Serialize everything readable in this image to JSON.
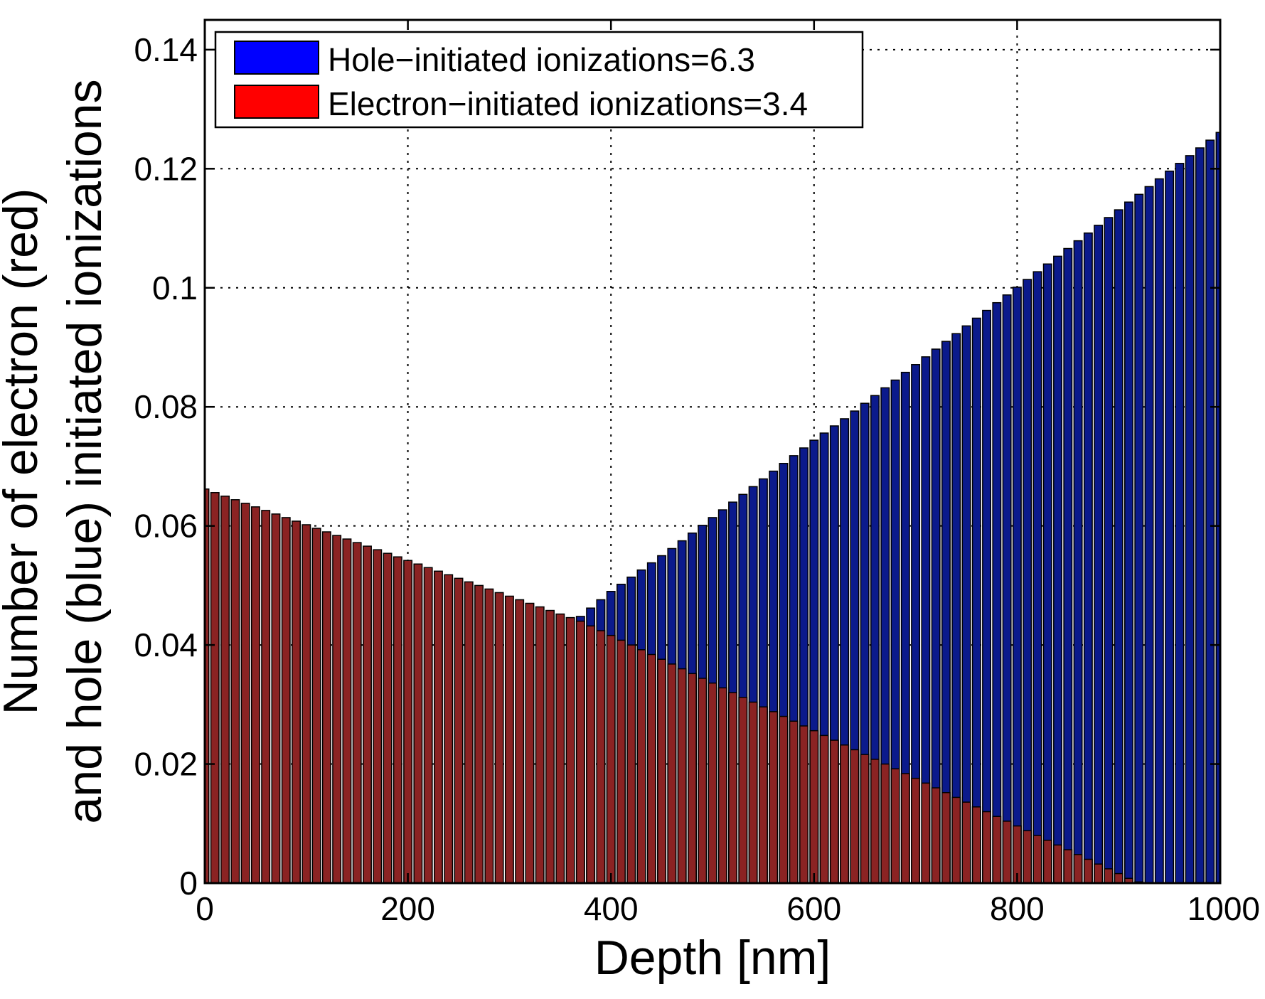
{
  "chart_data": {
    "type": "bar",
    "title": "",
    "xlabel": "Depth [nm]",
    "ylabel_line1": "Number of electron (red)",
    "ylabel_line2": "and hole (blue) initiated ionizations",
    "xlim": [
      0,
      1000
    ],
    "ylim": [
      0,
      0.145
    ],
    "grid": true,
    "legend_position": "top-left",
    "bar_step": 10,
    "x_ticks": [
      {
        "value": 0,
        "label": "0"
      },
      {
        "value": 200,
        "label": "200"
      },
      {
        "value": 400,
        "label": "400"
      },
      {
        "value": 600,
        "label": "600"
      },
      {
        "value": 800,
        "label": "800"
      },
      {
        "value": 1000,
        "label": "1000"
      }
    ],
    "y_ticks": [
      {
        "value": 0,
        "label": "0"
      },
      {
        "value": 0.02,
        "label": "0.02"
      },
      {
        "value": 0.04,
        "label": "0.04"
      },
      {
        "value": 0.06,
        "label": "0.06"
      },
      {
        "value": 0.08,
        "label": "0.08"
      },
      {
        "value": 0.1,
        "label": "0.1"
      },
      {
        "value": 0.12,
        "label": "0.12"
      },
      {
        "value": 0.14,
        "label": "0.14"
      }
    ],
    "series": [
      {
        "name": "Hole−initiated ionizations=6.3",
        "color": "#0b1a8c",
        "legend_color": "#0000ff",
        "points": [
          [
            370,
            0.0448
          ],
          [
            380,
            0.0462
          ],
          [
            390,
            0.0476
          ],
          [
            400,
            0.049
          ],
          [
            410,
            0.0502
          ],
          [
            420,
            0.0514
          ],
          [
            430,
            0.0526
          ],
          [
            440,
            0.0538
          ],
          [
            450,
            0.055
          ],
          [
            460,
            0.0562
          ],
          [
            470,
            0.0575
          ],
          [
            480,
            0.0588
          ],
          [
            490,
            0.0601
          ],
          [
            500,
            0.0614
          ],
          [
            510,
            0.0627
          ],
          [
            520,
            0.064
          ],
          [
            530,
            0.0653
          ],
          [
            540,
            0.0666
          ],
          [
            550,
            0.0679
          ],
          [
            560,
            0.0692
          ],
          [
            570,
            0.0705
          ],
          [
            580,
            0.0718
          ],
          [
            590,
            0.0731
          ],
          [
            600,
            0.0744
          ],
          [
            610,
            0.0756
          ],
          [
            620,
            0.0768
          ],
          [
            630,
            0.078
          ],
          [
            640,
            0.0793
          ],
          [
            650,
            0.0806
          ],
          [
            660,
            0.0819
          ],
          [
            670,
            0.0832
          ],
          [
            680,
            0.0845
          ],
          [
            690,
            0.0858
          ],
          [
            700,
            0.0871
          ],
          [
            710,
            0.0884
          ],
          [
            720,
            0.0897
          ],
          [
            730,
            0.091
          ],
          [
            740,
            0.0923
          ],
          [
            750,
            0.0936
          ],
          [
            760,
            0.0949
          ],
          [
            770,
            0.0962
          ],
          [
            780,
            0.0975
          ],
          [
            790,
            0.0988
          ],
          [
            800,
            0.1001
          ],
          [
            810,
            0.1014
          ],
          [
            820,
            0.1027
          ],
          [
            830,
            0.104
          ],
          [
            840,
            0.1053
          ],
          [
            850,
            0.1066
          ],
          [
            860,
            0.1079
          ],
          [
            870,
            0.1092
          ],
          [
            880,
            0.1105
          ],
          [
            890,
            0.1118
          ],
          [
            900,
            0.1131
          ],
          [
            910,
            0.1144
          ],
          [
            920,
            0.1157
          ],
          [
            930,
            0.117
          ],
          [
            940,
            0.1183
          ],
          [
            950,
            0.1196
          ],
          [
            960,
            0.1209
          ],
          [
            970,
            0.1222
          ],
          [
            980,
            0.1235
          ],
          [
            990,
            0.1248
          ],
          [
            1000,
            0.1261
          ]
        ]
      },
      {
        "name": "Electron−initiated ionizations=3.4",
        "color": "#8b2323",
        "legend_color": "#ff0000",
        "points": [
          [
            0,
            0.0662
          ],
          [
            10,
            0.0656
          ],
          [
            20,
            0.065
          ],
          [
            30,
            0.0644
          ],
          [
            40,
            0.0638
          ],
          [
            50,
            0.0632
          ],
          [
            60,
            0.0626
          ],
          [
            70,
            0.062
          ],
          [
            80,
            0.0614
          ],
          [
            90,
            0.0608
          ],
          [
            100,
            0.0602
          ],
          [
            110,
            0.0596
          ],
          [
            120,
            0.059
          ],
          [
            130,
            0.0584
          ],
          [
            140,
            0.0578
          ],
          [
            150,
            0.0572
          ],
          [
            160,
            0.0566
          ],
          [
            170,
            0.056
          ],
          [
            180,
            0.0554
          ],
          [
            190,
            0.0548
          ],
          [
            200,
            0.0542
          ],
          [
            210,
            0.0536
          ],
          [
            220,
            0.053
          ],
          [
            230,
            0.0524
          ],
          [
            240,
            0.0518
          ],
          [
            250,
            0.0512
          ],
          [
            260,
            0.0506
          ],
          [
            270,
            0.05
          ],
          [
            280,
            0.0494
          ],
          [
            290,
            0.0488
          ],
          [
            300,
            0.0482
          ],
          [
            310,
            0.0476
          ],
          [
            320,
            0.047
          ],
          [
            330,
            0.0464
          ],
          [
            340,
            0.0458
          ],
          [
            350,
            0.0452
          ],
          [
            360,
            0.0446
          ],
          [
            370,
            0.044
          ],
          [
            380,
            0.0432
          ],
          [
            390,
            0.0424
          ],
          [
            400,
            0.0416
          ],
          [
            410,
            0.0408
          ],
          [
            420,
            0.04
          ],
          [
            430,
            0.0392
          ],
          [
            440,
            0.0384
          ],
          [
            450,
            0.0376
          ],
          [
            460,
            0.0368
          ],
          [
            470,
            0.036
          ],
          [
            480,
            0.0352
          ],
          [
            490,
            0.0344
          ],
          [
            500,
            0.0336
          ],
          [
            510,
            0.0328
          ],
          [
            520,
            0.032
          ],
          [
            530,
            0.0312
          ],
          [
            540,
            0.0304
          ],
          [
            550,
            0.0296
          ],
          [
            560,
            0.0288
          ],
          [
            570,
            0.028
          ],
          [
            580,
            0.0272
          ],
          [
            590,
            0.0264
          ],
          [
            600,
            0.0256
          ],
          [
            610,
            0.0248
          ],
          [
            620,
            0.024
          ],
          [
            630,
            0.0232
          ],
          [
            640,
            0.0224
          ],
          [
            650,
            0.0216
          ],
          [
            660,
            0.0208
          ],
          [
            670,
            0.02
          ],
          [
            680,
            0.0192
          ],
          [
            690,
            0.0184
          ],
          [
            700,
            0.0176
          ],
          [
            710,
            0.0168
          ],
          [
            720,
            0.016
          ],
          [
            730,
            0.0152
          ],
          [
            740,
            0.0144
          ],
          [
            750,
            0.0136
          ],
          [
            760,
            0.0128
          ],
          [
            770,
            0.012
          ],
          [
            780,
            0.0112
          ],
          [
            790,
            0.0104
          ],
          [
            800,
            0.0096
          ],
          [
            810,
            0.0088
          ],
          [
            820,
            0.008
          ],
          [
            830,
            0.0072
          ],
          [
            840,
            0.0064
          ],
          [
            850,
            0.0056
          ],
          [
            860,
            0.0048
          ],
          [
            870,
            0.004
          ],
          [
            880,
            0.0032
          ],
          [
            890,
            0.0024
          ],
          [
            900,
            0.0016
          ],
          [
            910,
            0.0008
          ],
          [
            920,
            0.0002
          ]
        ]
      }
    ]
  }
}
